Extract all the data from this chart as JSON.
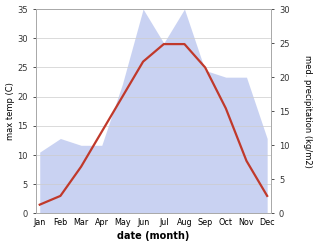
{
  "months": [
    "Jan",
    "Feb",
    "Mar",
    "Apr",
    "May",
    "Jun",
    "Jul",
    "Aug",
    "Sep",
    "Oct",
    "Nov",
    "Dec"
  ],
  "temp": [
    1.5,
    3,
    8,
    14,
    20,
    26,
    29,
    29,
    25,
    18,
    9,
    3
  ],
  "precip": [
    9,
    11,
    10,
    10,
    19,
    30,
    25,
    30,
    21,
    20,
    20,
    11
  ],
  "temp_ylim": [
    0,
    35
  ],
  "precip_ylim": [
    0,
    30
  ],
  "temp_color": "#c0392b",
  "precip_fill_color": "#b8c4ee",
  "precip_fill_alpha": 0.75,
  "xlabel": "date (month)",
  "ylabel_left": "max temp (C)",
  "ylabel_right": "med. precipitation (kg/m2)",
  "bg_color": "#ffffff",
  "spine_color": "#aaaaaa",
  "tick_color": "#333333",
  "grid_color": "#cccccc"
}
